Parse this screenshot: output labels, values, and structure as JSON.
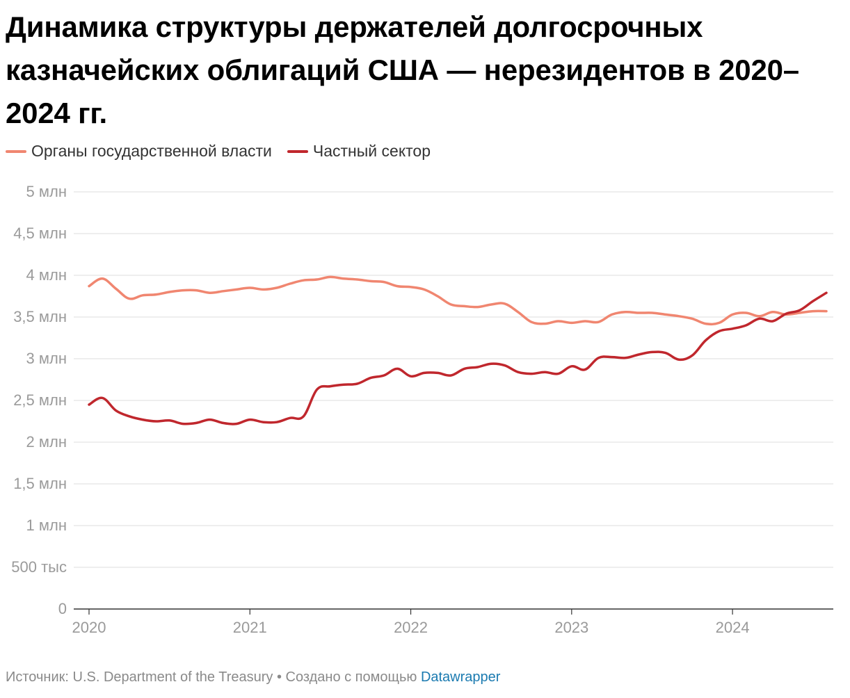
{
  "title": "Динамика структуры держателей долгосрочных казначейских облигаций США — нерезидентов в 2020–2024 гг.",
  "footer": {
    "source": "Источник: U.S. Department of the Treasury",
    "separator": " • ",
    "created_with": "Создано с помощью ",
    "tool": "Datawrapper"
  },
  "colors": {
    "government": "#f08670",
    "private": "#c0272d",
    "grid": "#e3e3e3",
    "axis_text": "#9a9a9a"
  },
  "chart_data": {
    "type": "line",
    "title": "Динамика структуры держателей долгосрочных казначейских облигаций США — нерезидентов в 2020–2024 гг.",
    "legend_position": "top-left",
    "grid": true,
    "ylim": [
      0,
      5000000
    ],
    "y_ticks": [
      {
        "value": 5000000,
        "label": "5 млн"
      },
      {
        "value": 4500000,
        "label": "4,5 млн"
      },
      {
        "value": 4000000,
        "label": "4 млн"
      },
      {
        "value": 3500000,
        "label": "3,5 млн"
      },
      {
        "value": 3000000,
        "label": "3 млн"
      },
      {
        "value": 2500000,
        "label": "2,5 млн"
      },
      {
        "value": 2000000,
        "label": "2 млн"
      },
      {
        "value": 1500000,
        "label": "1,5 млн"
      },
      {
        "value": 1000000,
        "label": "1 млн"
      },
      {
        "value": 500000,
        "label": "500 тыс"
      },
      {
        "value": 0,
        "label": "0"
      }
    ],
    "x_ticks": [
      "2020",
      "2021",
      "2022",
      "2023",
      "2024"
    ],
    "x": [
      "2020-01",
      "2020-02",
      "2020-03",
      "2020-04",
      "2020-05",
      "2020-06",
      "2020-07",
      "2020-08",
      "2020-09",
      "2020-10",
      "2020-11",
      "2020-12",
      "2021-01",
      "2021-02",
      "2021-03",
      "2021-04",
      "2021-05",
      "2021-06",
      "2021-07",
      "2021-08",
      "2021-09",
      "2021-10",
      "2021-11",
      "2021-12",
      "2022-01",
      "2022-02",
      "2022-03",
      "2022-04",
      "2022-05",
      "2022-06",
      "2022-07",
      "2022-08",
      "2022-09",
      "2022-10",
      "2022-11",
      "2022-12",
      "2023-01",
      "2023-02",
      "2023-03",
      "2023-04",
      "2023-05",
      "2023-06",
      "2023-07",
      "2023-08",
      "2023-09",
      "2023-10",
      "2023-11",
      "2023-12",
      "2024-01",
      "2024-02",
      "2024-03",
      "2024-04",
      "2024-05",
      "2024-06",
      "2024-07",
      "2024-08"
    ],
    "series": [
      {
        "name": "Органы государственной власти",
        "color": "#f08670",
        "values": [
          3870000,
          3960000,
          3840000,
          3720000,
          3760000,
          3770000,
          3800000,
          3820000,
          3820000,
          3790000,
          3810000,
          3830000,
          3850000,
          3830000,
          3850000,
          3900000,
          3940000,
          3950000,
          3980000,
          3960000,
          3950000,
          3930000,
          3920000,
          3870000,
          3860000,
          3830000,
          3750000,
          3650000,
          3630000,
          3620000,
          3650000,
          3660000,
          3560000,
          3440000,
          3420000,
          3450000,
          3430000,
          3450000,
          3440000,
          3530000,
          3560000,
          3550000,
          3550000,
          3530000,
          3510000,
          3480000,
          3420000,
          3430000,
          3530000,
          3550000,
          3510000,
          3560000,
          3530000,
          3550000,
          3570000,
          3570000
        ]
      },
      {
        "name": "Частный сектор",
        "color": "#c0272d",
        "values": [
          2450000,
          2530000,
          2380000,
          2310000,
          2270000,
          2250000,
          2260000,
          2220000,
          2230000,
          2270000,
          2230000,
          2220000,
          2270000,
          2240000,
          2240000,
          2290000,
          2310000,
          2630000,
          2670000,
          2690000,
          2700000,
          2770000,
          2800000,
          2880000,
          2790000,
          2830000,
          2830000,
          2800000,
          2880000,
          2900000,
          2940000,
          2920000,
          2840000,
          2820000,
          2840000,
          2820000,
          2910000,
          2870000,
          3010000,
          3020000,
          3010000,
          3050000,
          3080000,
          3070000,
          2990000,
          3040000,
          3220000,
          3330000,
          3360000,
          3400000,
          3480000,
          3450000,
          3540000,
          3580000,
          3690000,
          3790000
        ]
      }
    ]
  }
}
